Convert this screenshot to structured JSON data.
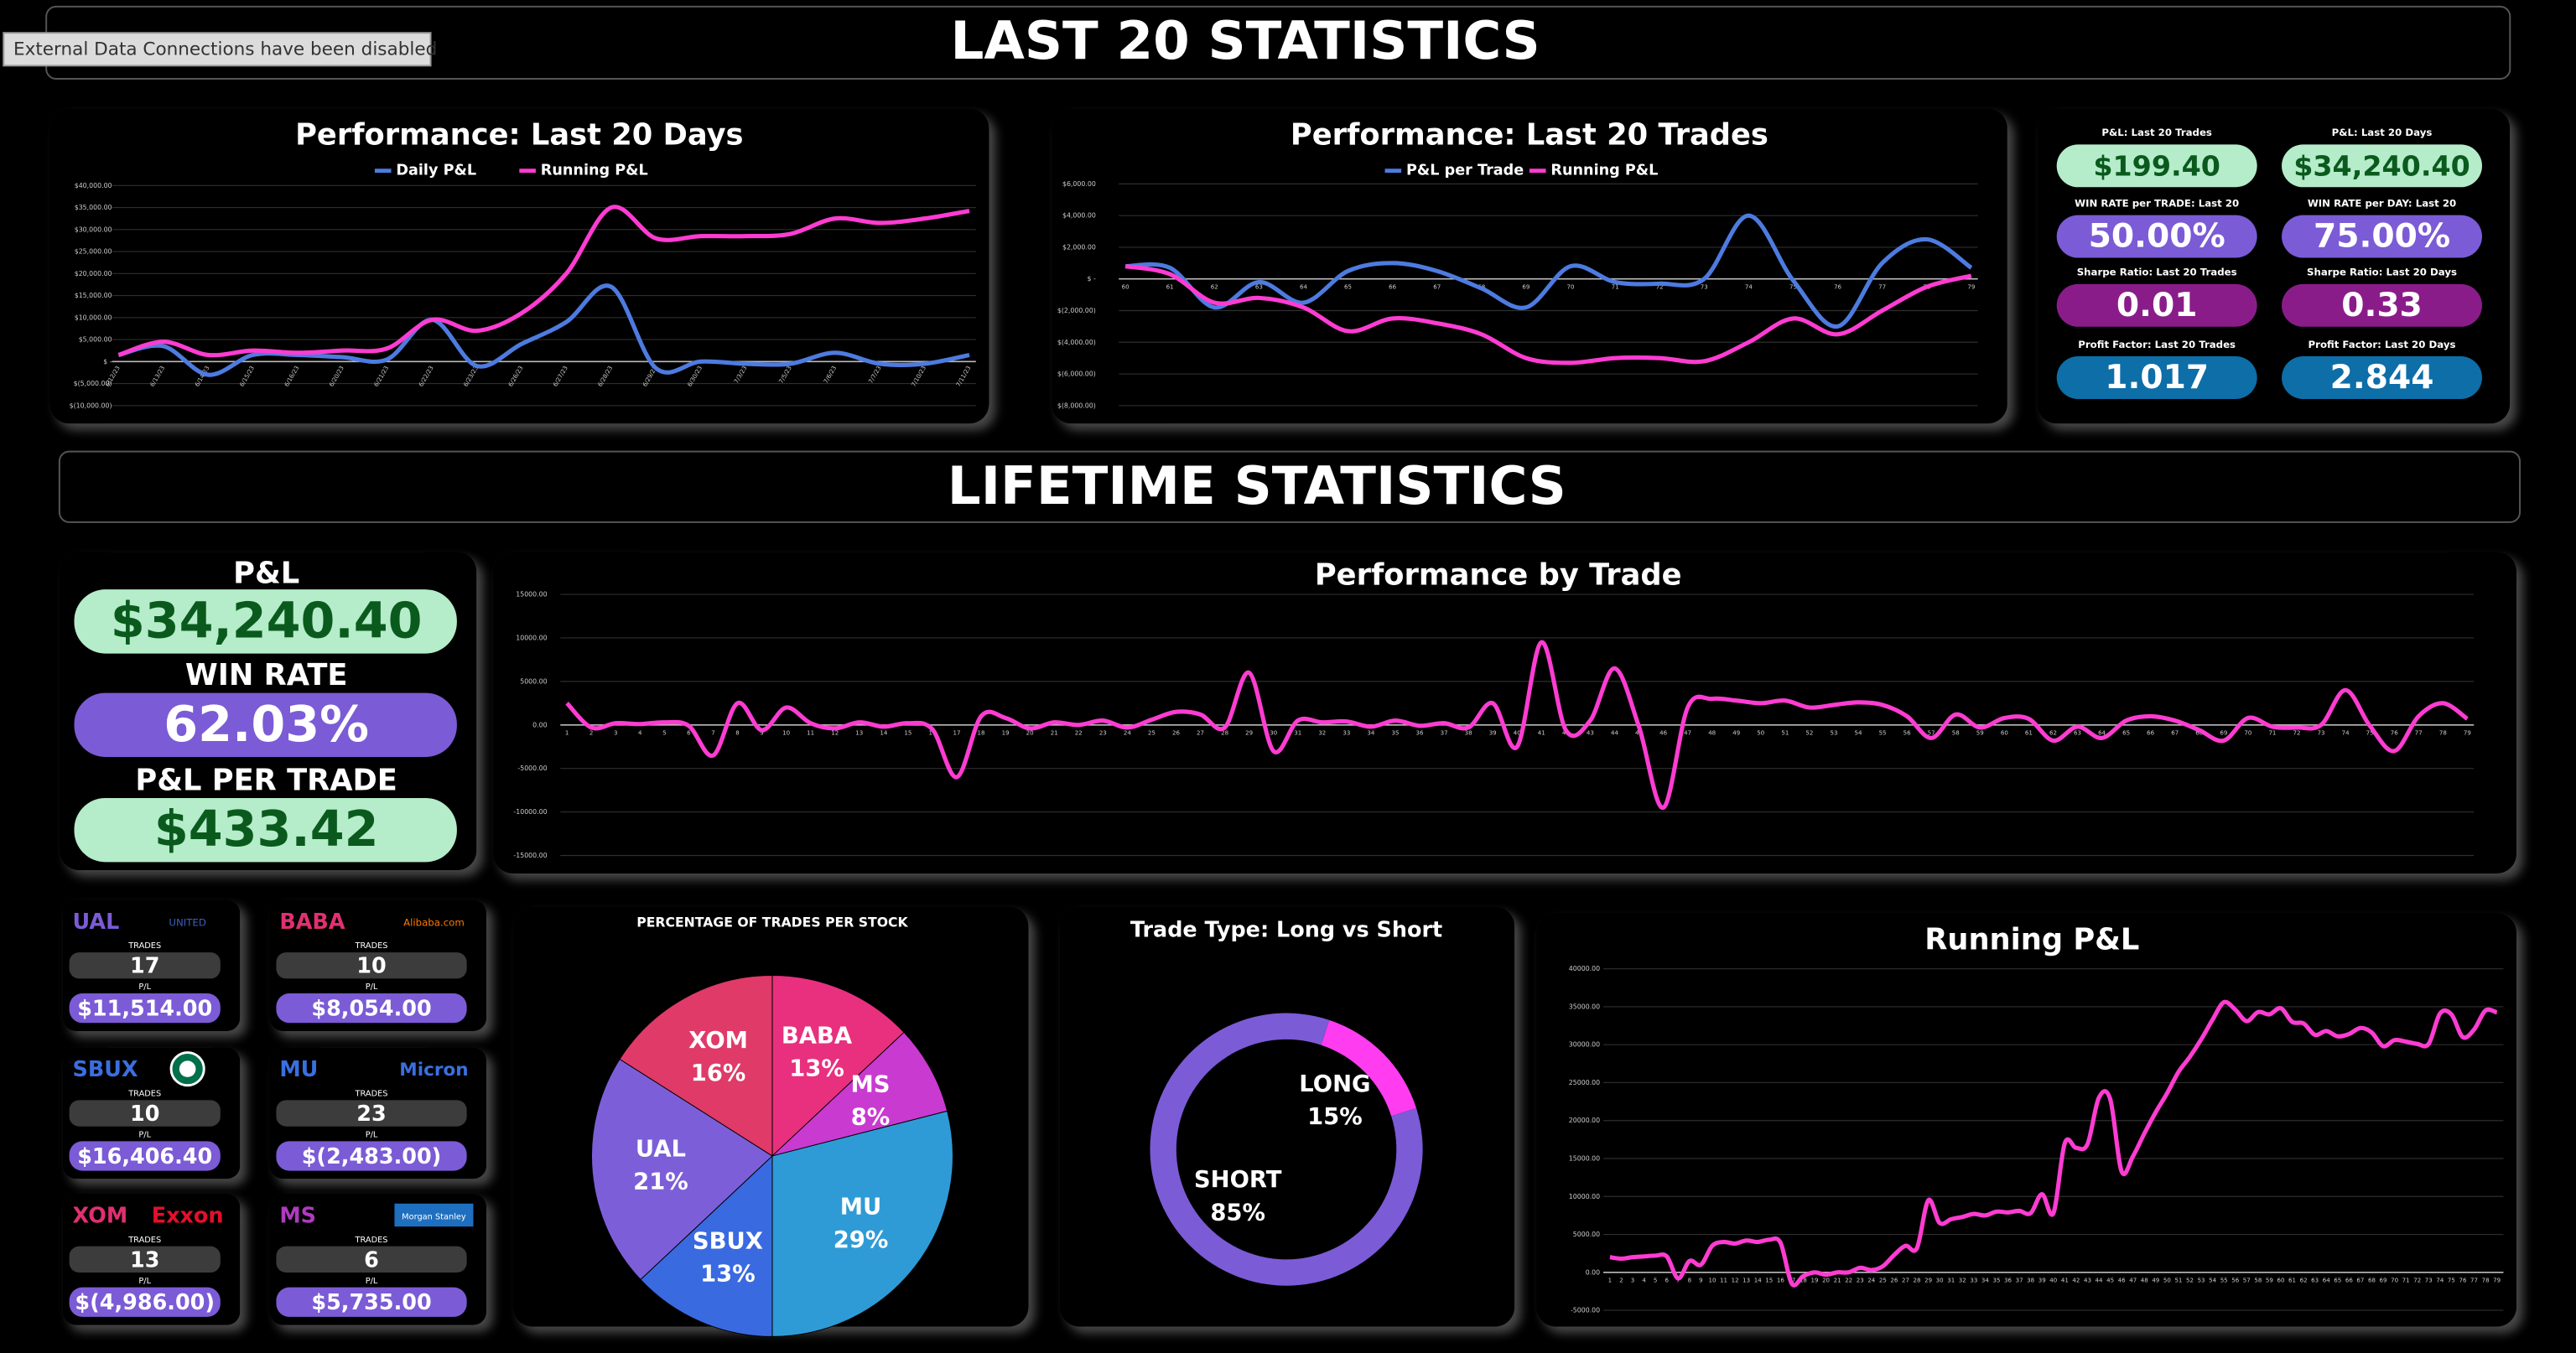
{
  "banner": "External Data Connections have been disabled",
  "last20": {
    "title": "LAST 20 STATISTICS",
    "kpis": [
      {
        "label": "P&L: Last 20 Trades",
        "value": "$199.40"
      },
      {
        "label": "P&L: Last 20 Days",
        "value": "$34,240.40"
      },
      {
        "label": "WIN RATE per TRADE: Last 20",
        "value": "50.00%"
      },
      {
        "label": "WIN RATE per DAY: Last 20",
        "value": "75.00%"
      },
      {
        "label": "Sharpe Ratio: Last 20 Trades",
        "value": "0.01"
      },
      {
        "label": "Sharpe Ratio: Last 20 Days",
        "value": "0.33"
      },
      {
        "label": "Profit Factor: Last 20 Trades",
        "value": "1.017"
      },
      {
        "label": "Profit Factor: Last 20 Days",
        "value": "2.844"
      }
    ]
  },
  "lifetime": {
    "title": "LIFETIME STATISTICS",
    "kpis": [
      {
        "label": "P&L",
        "value": "$34,240.40"
      },
      {
        "label": "WIN RATE",
        "value": "62.03%"
      },
      {
        "label": "P&L PER TRADE",
        "value": "$433.42"
      }
    ],
    "stocks": [
      {
        "ticker": "UAL",
        "logo": "UNITED",
        "trades_label": "TRADES",
        "trades": 17,
        "pl_label": "P/L",
        "pl": "$11,514.00"
      },
      {
        "ticker": "BABA",
        "logo": "Alibaba.com",
        "trades_label": "TRADES",
        "trades": 10,
        "pl_label": "P/L",
        "pl": "$8,054.00"
      },
      {
        "ticker": "SBUX",
        "trades_label": "TRADES",
        "trades": 10,
        "pl_label": "P/L",
        "pl": "$16,406.40"
      },
      {
        "ticker": "MU",
        "logo": "Micron",
        "trades_label": "TRADES",
        "trades": 23,
        "pl_label": "P/L",
        "pl": "$(2,483.00)"
      },
      {
        "ticker": "XOM",
        "logo": "Exxon",
        "trades_label": "TRADES",
        "trades": 13,
        "pl_label": "P/L",
        "pl": "$(4,986.00)"
      },
      {
        "ticker": "MS",
        "logo": "Morgan Stanley",
        "trades_label": "TRADES",
        "trades": 6,
        "pl_label": "P/L",
        "pl": "$5,735.00"
      }
    ]
  },
  "chart_data": [
    {
      "type": "line",
      "title": "Performance: Last 20 Days",
      "grid": true,
      "categories": [
        "6/12/23",
        "6/13/23",
        "6/14/23",
        "6/15/23",
        "6/16/23",
        "6/20/23",
        "6/21/23",
        "6/22/23",
        "6/23/23",
        "6/26/23",
        "6/27/23",
        "6/28/23",
        "6/29/23",
        "6/30/23",
        "7/3/23",
        "7/5/23",
        "7/6/23",
        "7/7/23",
        "7/10/23",
        "7/11/23"
      ],
      "series": [
        {
          "name": "Daily P&L",
          "color": "#4d7be0",
          "values": [
            1500,
            3500,
            -3000,
            1500,
            1500,
            1000,
            500,
            9500,
            -1000,
            4000,
            9000,
            17000,
            -1500,
            0,
            -500,
            -500,
            2000,
            -500,
            -500,
            1500
          ]
        },
        {
          "name": "Running P&L",
          "color": "#ff3cd2",
          "values": [
            1500,
            4500,
            1500,
            2500,
            2000,
            2500,
            3000,
            9500,
            7000,
            11000,
            20000,
            35000,
            28000,
            28500,
            28500,
            29000,
            32500,
            31500,
            32500,
            34240
          ]
        }
      ],
      "ylim": [
        -10000,
        40000
      ],
      "yticks": [
        {
          "value": -10000,
          "label": "$(10,000.00)"
        },
        {
          "value": -5000,
          "label": "$(5,000.00)"
        },
        {
          "value": 0,
          "label": "$ -"
        },
        {
          "value": 5000,
          "label": "$5,000.00"
        },
        {
          "value": 10000,
          "label": "$10,000.00"
        },
        {
          "value": 15000,
          "label": "$15,000.00"
        },
        {
          "value": 20000,
          "label": "$20,000.00"
        },
        {
          "value": 25000,
          "label": "$25,000.00"
        },
        {
          "value": 30000,
          "label": "$30,000.00"
        },
        {
          "value": 35000,
          "label": "$35,000.00"
        },
        {
          "value": 40000,
          "label": "$40,000.00"
        }
      ]
    },
    {
      "type": "line",
      "title": "Performance: Last 20 Trades",
      "grid": true,
      "categories": [
        "60",
        "61",
        "62",
        "63",
        "64",
        "65",
        "66",
        "67",
        "68",
        "69",
        "70",
        "71",
        "72",
        "73",
        "74",
        "75",
        "76",
        "77",
        "78",
        "79"
      ],
      "series": [
        {
          "name": "P&L per Trade",
          "color": "#4d7be0",
          "values": [
            800,
            700,
            -1800,
            -200,
            -1500,
            500,
            1000,
            500,
            -600,
            -1800,
            800,
            -200,
            -300,
            0,
            4000,
            -100,
            -3000,
            1000,
            2500,
            700
          ]
        },
        {
          "name": "Running P&L",
          "color": "#ff3cd2",
          "values": [
            800,
            300,
            -1500,
            -1200,
            -1800,
            -3300,
            -2500,
            -2800,
            -3500,
            -5000,
            -5300,
            -5000,
            -5000,
            -5200,
            -4000,
            -2500,
            -3500,
            -2000,
            -500,
            199
          ]
        }
      ],
      "ylim": [
        -8000,
        6000
      ],
      "yticks": [
        {
          "value": -8000,
          "label": "$(8,000.00)"
        },
        {
          "value": -6000,
          "label": "$(6,000.00)"
        },
        {
          "value": -4000,
          "label": "$(4,000.00)"
        },
        {
          "value": -2000,
          "label": "$(2,000.00)"
        },
        {
          "value": 0,
          "label": "$ -"
        },
        {
          "value": 2000,
          "label": "$2,000.00"
        },
        {
          "value": 4000,
          "label": "$4,000.00"
        },
        {
          "value": 6000,
          "label": "$6,000.00"
        }
      ]
    },
    {
      "type": "line",
      "title": "Performance by Trade",
      "grid": true,
      "color": "#ff3cd2",
      "categories": [
        "1",
        "2",
        "3",
        "4",
        "5",
        "6",
        "7",
        "8",
        "9",
        "10",
        "11",
        "12",
        "13",
        "14",
        "15",
        "16",
        "17",
        "18",
        "19",
        "20",
        "21",
        "22",
        "23",
        "24",
        "25",
        "26",
        "27",
        "28",
        "29",
        "30",
        "31",
        "32",
        "33",
        "34",
        "35",
        "36",
        "37",
        "38",
        "39",
        "40",
        "41",
        "42",
        "43",
        "44",
        "45",
        "46",
        "47",
        "48",
        "49",
        "50",
        "51",
        "52",
        "53",
        "54",
        "55",
        "56",
        "57",
        "58",
        "59",
        "60",
        "61",
        "62",
        "63",
        "64",
        "65",
        "66",
        "67",
        "68",
        "69",
        "70",
        "71",
        "72",
        "73",
        "74",
        "75",
        "76",
        "77",
        "78",
        "79"
      ],
      "values": [
        2500,
        -300,
        200,
        100,
        300,
        -100,
        -3500,
        2500,
        -600,
        2000,
        200,
        -400,
        300,
        -200,
        200,
        -500,
        -6000,
        1000,
        800,
        -400,
        300,
        0,
        500,
        -300,
        600,
        1500,
        1200,
        -300,
        6000,
        -3000,
        500,
        300,
        400,
        -200,
        500,
        -100,
        200,
        -300,
        2500,
        -2500,
        9500,
        -600,
        500,
        6500,
        -200,
        -9500,
        2000,
        3000,
        2800,
        2500,
        2800,
        2000,
        2300,
        2600,
        2300,
        1000,
        -1500,
        1200,
        -300,
        800,
        700,
        -1800,
        -200,
        -1500,
        500,
        1000,
        500,
        -600,
        -1800,
        800,
        -200,
        -300,
        0,
        4000,
        -100,
        -3000,
        1000,
        2500,
        700
      ],
      "ylim": [
        -15000,
        15000
      ],
      "yticks": [
        {
          "value": -15000,
          "label": "-15000.00"
        },
        {
          "value": -10000,
          "label": "-10000.00"
        },
        {
          "value": -5000,
          "label": "-5000.00"
        },
        {
          "value": 0,
          "label": "0.00"
        },
        {
          "value": 5000,
          "label": "5000.00"
        },
        {
          "value": 10000,
          "label": "10000.00"
        },
        {
          "value": 15000,
          "label": "15000.00"
        }
      ]
    },
    {
      "type": "pie",
      "title": "PERCENTAGE OF TRADES PER STOCK",
      "categories": [
        "BABA",
        "MS",
        "MU",
        "SBUX",
        "UAL",
        "XOM"
      ],
      "values": [
        13,
        8,
        29,
        13,
        21,
        16
      ],
      "value_labels": [
        "13%",
        "8%",
        "29%",
        "13%",
        "21%",
        "16%"
      ],
      "colors": [
        "#e8307e",
        "#c93ad0",
        "#2f9bd6",
        "#3a6ae0",
        "#7c5fd8",
        "#e03a68"
      ]
    },
    {
      "type": "donut",
      "title": "Trade Type: Long vs Short",
      "categories": [
        "LONG",
        "SHORT"
      ],
      "values": [
        15,
        85
      ],
      "value_labels": [
        "15%",
        "85%"
      ],
      "colors": [
        "#ff3cf0",
        "#7b5bd6"
      ]
    },
    {
      "type": "line",
      "title": "Running P&L",
      "grid": true,
      "color": "#ff3cd2",
      "categories": [
        "1",
        "2",
        "3",
        "4",
        "5",
        "6",
        "7",
        "8",
        "9",
        "10",
        "11",
        "12",
        "13",
        "14",
        "15",
        "16",
        "17",
        "18",
        "19",
        "20",
        "21",
        "22",
        "23",
        "24",
        "25",
        "26",
        "27",
        "28",
        "29",
        "30",
        "31",
        "32",
        "33",
        "34",
        "35",
        "36",
        "37",
        "38",
        "39",
        "40",
        "41",
        "42",
        "43",
        "44",
        "45",
        "46",
        "47",
        "48",
        "49",
        "50",
        "51",
        "52",
        "53",
        "54",
        "55",
        "56",
        "57",
        "58",
        "59",
        "60",
        "61",
        "62",
        "63",
        "64",
        "65",
        "66",
        "67",
        "68",
        "69",
        "70",
        "71",
        "72",
        "73",
        "74",
        "75",
        "76",
        "77",
        "78",
        "79"
      ],
      "values": [
        2000,
        1800,
        2000,
        2100,
        2200,
        2100,
        -800,
        1500,
        1000,
        3500,
        4000,
        3800,
        4200,
        4000,
        4300,
        3900,
        -1500,
        -500,
        0,
        -300,
        0,
        0,
        600,
        300,
        800,
        2300,
        3500,
        3200,
        9500,
        6500,
        7000,
        7300,
        7700,
        7500,
        8000,
        7900,
        8100,
        7800,
        10300,
        7800,
        17000,
        16400,
        16900,
        23000,
        22800,
        13300,
        15300,
        18300,
        21100,
        23600,
        26400,
        28400,
        30700,
        33300,
        35600,
        34600,
        33100,
        34300,
        34000,
        34800,
        33000,
        32800,
        31300,
        31800,
        31100,
        31400,
        32200,
        31600,
        29800,
        30600,
        30400,
        30100,
        30100,
        34100,
        34000,
        31000,
        32000,
        34500,
        34240
      ],
      "ylim": [
        -5000,
        40000
      ],
      "yticks": [
        {
          "value": -5000,
          "label": "-5000.00"
        },
        {
          "value": 0,
          "label": "0.00"
        },
        {
          "value": 5000,
          "label": "5000.00"
        },
        {
          "value": 10000,
          "label": "10000.00"
        },
        {
          "value": 15000,
          "label": "15000.00"
        },
        {
          "value": 20000,
          "label": "20000.00"
        },
        {
          "value": 25000,
          "label": "25000.00"
        },
        {
          "value": 30000,
          "label": "30000.00"
        },
        {
          "value": 35000,
          "label": "35000.00"
        },
        {
          "value": 40000,
          "label": "40000.00"
        }
      ]
    }
  ]
}
